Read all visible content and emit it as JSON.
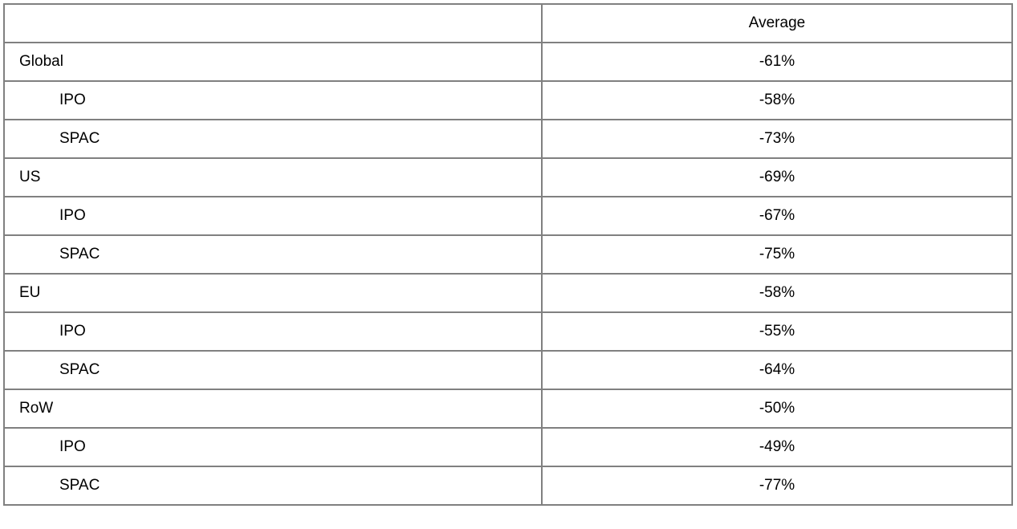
{
  "table": {
    "header": {
      "label": "",
      "value": "Average"
    },
    "rows": [
      {
        "label": "Global",
        "value": "-61%",
        "level": 0
      },
      {
        "label": "IPO",
        "value": "-58%",
        "level": 1
      },
      {
        "label": "SPAC",
        "value": "-73%",
        "level": 1
      },
      {
        "label": "US",
        "value": "-69%",
        "level": 0
      },
      {
        "label": "IPO",
        "value": "-67%",
        "level": 1
      },
      {
        "label": "SPAC",
        "value": "-75%",
        "level": 1
      },
      {
        "label": "EU",
        "value": "-58%",
        "level": 0
      },
      {
        "label": "IPO",
        "value": "-55%",
        "level": 1
      },
      {
        "label": "SPAC",
        "value": "-64%",
        "level": 1
      },
      {
        "label": "RoW",
        "value": "-50%",
        "level": 0
      },
      {
        "label": "IPO",
        "value": "-49%",
        "level": 1
      },
      {
        "label": "SPAC",
        "value": "-77%",
        "level": 1
      }
    ]
  }
}
